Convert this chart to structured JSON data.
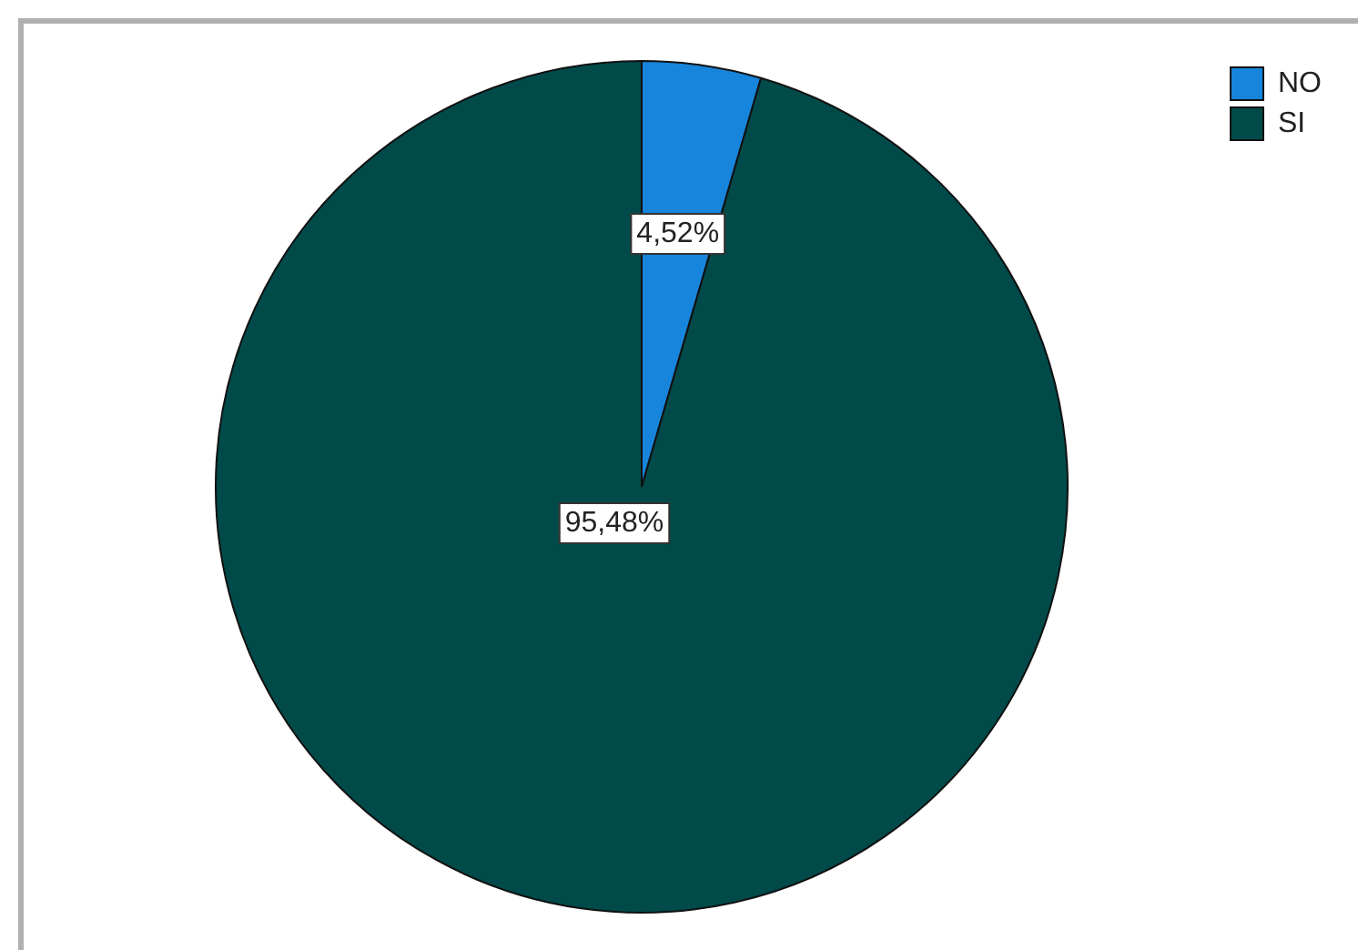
{
  "chart_data": {
    "type": "pie",
    "categories": [
      "NO",
      "SI"
    ],
    "values": [
      4.52,
      95.48
    ],
    "colors": [
      "#1785dc",
      "#004a4a"
    ],
    "value_labels": [
      "4,52%",
      "95,48%"
    ],
    "legend": "top right"
  }
}
